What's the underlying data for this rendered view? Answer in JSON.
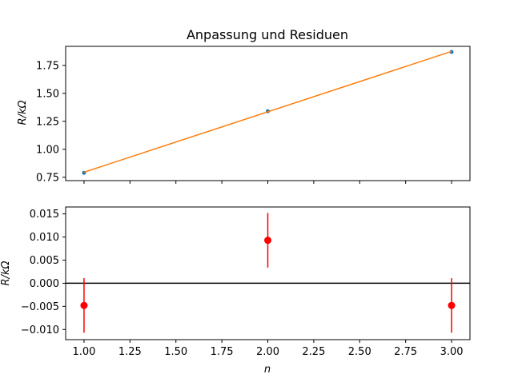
{
  "chart_data": [
    {
      "type": "line",
      "title": "Anpassung und Residuen",
      "xlabel": "",
      "ylabel": "R/kΩ",
      "xlim": [
        0.9,
        3.1
      ],
      "ylim": [
        0.72,
        1.92
      ],
      "x_ticks": [
        1.0,
        1.25,
        1.5,
        1.75,
        2.0,
        2.25,
        2.5,
        2.75,
        3.0
      ],
      "y_ticks": [
        0.75,
        1.0,
        1.25,
        1.5,
        1.75
      ],
      "y_tick_labels": [
        "0.75",
        "1.00",
        "1.25",
        "1.50",
        "1.75"
      ],
      "grid": false,
      "series": [
        {
          "kind": "scatter",
          "color": "#1f77b4",
          "x": [
            1,
            2,
            3
          ],
          "y": [
            0.79,
            1.34,
            1.87
          ]
        },
        {
          "kind": "line",
          "color": "#ff7f0e",
          "x": [
            1,
            3
          ],
          "y": [
            0.795,
            1.875
          ]
        }
      ]
    },
    {
      "type": "scatter",
      "title": "",
      "xlabel": "n",
      "ylabel": "R/kΩ",
      "xlim": [
        0.9,
        3.1
      ],
      "ylim": [
        -0.0122,
        0.0165
      ],
      "x_ticks": [
        1.0,
        1.25,
        1.5,
        1.75,
        2.0,
        2.25,
        2.5,
        2.75,
        3.0
      ],
      "x_tick_labels": [
        "1.00",
        "1.25",
        "1.50",
        "1.75",
        "2.00",
        "2.25",
        "2.50",
        "2.75",
        "3.00"
      ],
      "y_ticks": [
        -0.01,
        -0.005,
        0.0,
        0.005,
        0.01,
        0.015
      ],
      "y_tick_labels": [
        "−0.010",
        "−0.005",
        "0.000",
        "0.005",
        "0.010",
        "0.015"
      ],
      "grid": false,
      "zero_line": {
        "y": 0,
        "color": "#000000"
      },
      "series": [
        {
          "kind": "errorbar",
          "color": "#ff0000",
          "x": [
            1,
            2,
            3
          ],
          "y": [
            -0.0048,
            0.0093,
            -0.0048
          ],
          "yerr": [
            0.0059,
            0.0059,
            0.0059
          ]
        }
      ]
    }
  ]
}
